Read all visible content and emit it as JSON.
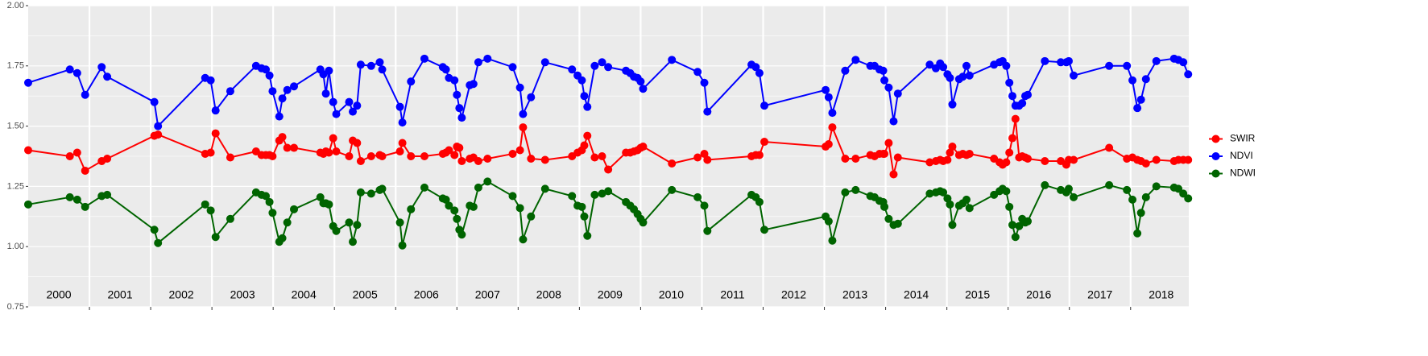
{
  "chart_data": {
    "type": "line",
    "x": [
      2000.0,
      2000.68,
      2000.8,
      2000.93,
      2001.2,
      2001.29,
      2002.06,
      2002.12,
      2002.89,
      2002.98,
      2003.06,
      2003.3,
      2003.72,
      2003.81,
      2003.88,
      2003.94,
      2003.99,
      2004.1,
      2004.15,
      2004.23,
      2004.34,
      2004.77,
      2004.82,
      2004.86,
      2004.91,
      2004.98,
      2005.03,
      2005.24,
      2005.3,
      2005.37,
      2005.43,
      2005.6,
      2005.74,
      2005.78,
      2006.07,
      2006.11,
      2006.25,
      2006.47,
      2006.77,
      2006.82,
      2006.87,
      2006.96,
      2007.0,
      2007.04,
      2007.08,
      2007.21,
      2007.27,
      2007.35,
      2007.5,
      2007.91,
      2008.03,
      2008.08,
      2008.21,
      2008.44,
      2008.88,
      2008.97,
      2009.04,
      2009.08,
      2009.13,
      2009.25,
      2009.37,
      2009.47,
      2009.76,
      2009.83,
      2009.89,
      2009.95,
      2010.0,
      2010.04,
      2010.51,
      2010.93,
      2011.04,
      2011.09,
      2011.81,
      2011.88,
      2011.94,
      2012.02,
      2013.02,
      2013.07,
      2013.13,
      2013.34,
      2013.51,
      2013.75,
      2013.82,
      2013.9,
      2013.96,
      2013.98,
      2014.05,
      2014.13,
      2014.2,
      2014.72,
      2014.82,
      2014.89,
      2014.94,
      2015.01,
      2015.05,
      2015.09,
      2015.2,
      2015.26,
      2015.32,
      2015.37,
      2015.77,
      2015.86,
      2015.91,
      2015.97,
      2016.02,
      2016.07,
      2016.12,
      2016.18,
      2016.23,
      2016.28,
      2016.32,
      2016.6,
      2016.86,
      2016.95,
      2016.99,
      2017.07,
      2017.65,
      2017.94,
      2018.03,
      2018.11,
      2018.17,
      2018.25,
      2018.42,
      2018.71,
      2018.78,
      2018.86,
      2018.94
    ],
    "series": [
      {
        "name": "SWIR",
        "color": "#ff0000",
        "values": [
          1.4,
          1.375,
          1.39,
          1.315,
          1.355,
          1.365,
          1.46,
          1.465,
          1.385,
          1.39,
          1.47,
          1.37,
          1.395,
          1.38,
          1.38,
          1.38,
          1.375,
          1.44,
          1.455,
          1.41,
          1.41,
          1.39,
          1.385,
          1.395,
          1.39,
          1.45,
          1.395,
          1.375,
          1.44,
          1.43,
          1.355,
          1.375,
          1.38,
          1.375,
          1.395,
          1.43,
          1.375,
          1.375,
          1.385,
          1.39,
          1.4,
          1.38,
          1.415,
          1.41,
          1.355,
          1.365,
          1.37,
          1.355,
          1.365,
          1.385,
          1.4,
          1.495,
          1.365,
          1.36,
          1.375,
          1.39,
          1.4,
          1.42,
          1.46,
          1.37,
          1.375,
          1.32,
          1.39,
          1.39,
          1.395,
          1.4,
          1.41,
          1.415,
          1.345,
          1.37,
          1.385,
          1.36,
          1.375,
          1.38,
          1.38,
          1.435,
          1.415,
          1.425,
          1.495,
          1.365,
          1.365,
          1.38,
          1.375,
          1.385,
          1.385,
          1.385,
          1.43,
          1.3,
          1.37,
          1.35,
          1.355,
          1.36,
          1.355,
          1.36,
          1.39,
          1.415,
          1.38,
          1.385,
          1.38,
          1.385,
          1.365,
          1.35,
          1.34,
          1.35,
          1.39,
          1.45,
          1.53,
          1.37,
          1.375,
          1.37,
          1.365,
          1.355,
          1.355,
          1.34,
          1.36,
          1.36,
          1.41,
          1.365,
          1.37,
          1.36,
          1.355,
          1.345,
          1.36,
          1.355,
          1.36,
          1.36,
          1.36
        ]
      },
      {
        "name": "NDVI",
        "color": "#0000ff",
        "values": [
          1.68,
          1.735,
          1.72,
          1.63,
          1.745,
          1.705,
          1.6,
          1.5,
          1.7,
          1.69,
          1.565,
          1.645,
          1.75,
          1.74,
          1.735,
          1.71,
          1.645,
          1.54,
          1.615,
          1.65,
          1.665,
          1.735,
          1.715,
          1.635,
          1.73,
          1.6,
          1.55,
          1.6,
          1.56,
          1.585,
          1.755,
          1.75,
          1.765,
          1.735,
          1.58,
          1.515,
          1.685,
          1.78,
          1.745,
          1.735,
          1.7,
          1.69,
          1.63,
          1.575,
          1.535,
          1.67,
          1.675,
          1.765,
          1.78,
          1.745,
          1.66,
          1.55,
          1.62,
          1.765,
          1.735,
          1.71,
          1.69,
          1.625,
          1.58,
          1.75,
          1.765,
          1.745,
          1.73,
          1.72,
          1.705,
          1.7,
          1.685,
          1.655,
          1.775,
          1.725,
          1.68,
          1.56,
          1.755,
          1.745,
          1.72,
          1.585,
          1.65,
          1.62,
          1.555,
          1.73,
          1.775,
          1.75,
          1.75,
          1.735,
          1.73,
          1.69,
          1.66,
          1.52,
          1.635,
          1.755,
          1.74,
          1.76,
          1.745,
          1.715,
          1.7,
          1.59,
          1.695,
          1.705,
          1.75,
          1.71,
          1.755,
          1.765,
          1.77,
          1.75,
          1.68,
          1.625,
          1.585,
          1.585,
          1.595,
          1.625,
          1.63,
          1.77,
          1.765,
          1.765,
          1.77,
          1.71,
          1.75,
          1.75,
          1.69,
          1.575,
          1.61,
          1.695,
          1.77,
          1.78,
          1.775,
          1.765,
          1.715
        ]
      },
      {
        "name": "NDWI",
        "color": "#006400",
        "values": [
          1.175,
          1.205,
          1.195,
          1.165,
          1.21,
          1.215,
          1.07,
          1.015,
          1.175,
          1.15,
          1.04,
          1.115,
          1.225,
          1.215,
          1.21,
          1.185,
          1.14,
          1.02,
          1.035,
          1.1,
          1.155,
          1.205,
          1.18,
          1.18,
          1.175,
          1.085,
          1.065,
          1.1,
          1.02,
          1.09,
          1.225,
          1.22,
          1.235,
          1.24,
          1.1,
          1.005,
          1.155,
          1.245,
          1.2,
          1.195,
          1.17,
          1.15,
          1.115,
          1.07,
          1.05,
          1.17,
          1.165,
          1.245,
          1.27,
          1.21,
          1.16,
          1.03,
          1.125,
          1.24,
          1.21,
          1.17,
          1.165,
          1.125,
          1.045,
          1.215,
          1.22,
          1.23,
          1.185,
          1.17,
          1.155,
          1.135,
          1.115,
          1.1,
          1.235,
          1.205,
          1.17,
          1.065,
          1.215,
          1.205,
          1.185,
          1.07,
          1.125,
          1.105,
          1.025,
          1.225,
          1.235,
          1.21,
          1.205,
          1.19,
          1.185,
          1.165,
          1.115,
          1.09,
          1.095,
          1.22,
          1.225,
          1.23,
          1.225,
          1.2,
          1.175,
          1.09,
          1.17,
          1.18,
          1.195,
          1.16,
          1.215,
          1.23,
          1.24,
          1.23,
          1.165,
          1.09,
          1.04,
          1.085,
          1.115,
          1.1,
          1.105,
          1.255,
          1.235,
          1.225,
          1.24,
          1.205,
          1.255,
          1.235,
          1.195,
          1.055,
          1.14,
          1.205,
          1.25,
          1.245,
          1.24,
          1.22,
          1.2
        ]
      }
    ],
    "xlim": [
      2000,
      2018.95
    ],
    "xticks": [
      2001,
      2002,
      2003,
      2004,
      2005,
      2006,
      2007,
      2008,
      2009,
      2010,
      2011,
      2012,
      2013,
      2014,
      2015,
      2016,
      2017,
      2018
    ],
    "year_labels": [
      "2000",
      "2001",
      "2002",
      "2003",
      "2004",
      "2005",
      "2006",
      "2007",
      "2008",
      "2009",
      "2010",
      "2011",
      "2012",
      "2013",
      "2014",
      "2015",
      "2016",
      "2017",
      "2018"
    ],
    "ylim": [
      0.75,
      2
    ],
    "yticks": [
      {
        "value": 0.75,
        "label": "0.75"
      },
      {
        "value": 1,
        "label": "1.00"
      },
      {
        "value": 1.25,
        "label": "1.25"
      },
      {
        "value": 1.5,
        "label": "1.50"
      },
      {
        "value": 1.75,
        "label": "1.75"
      },
      {
        "value": 2,
        "label": "2.00"
      }
    ],
    "grid": true,
    "legend": "right"
  }
}
